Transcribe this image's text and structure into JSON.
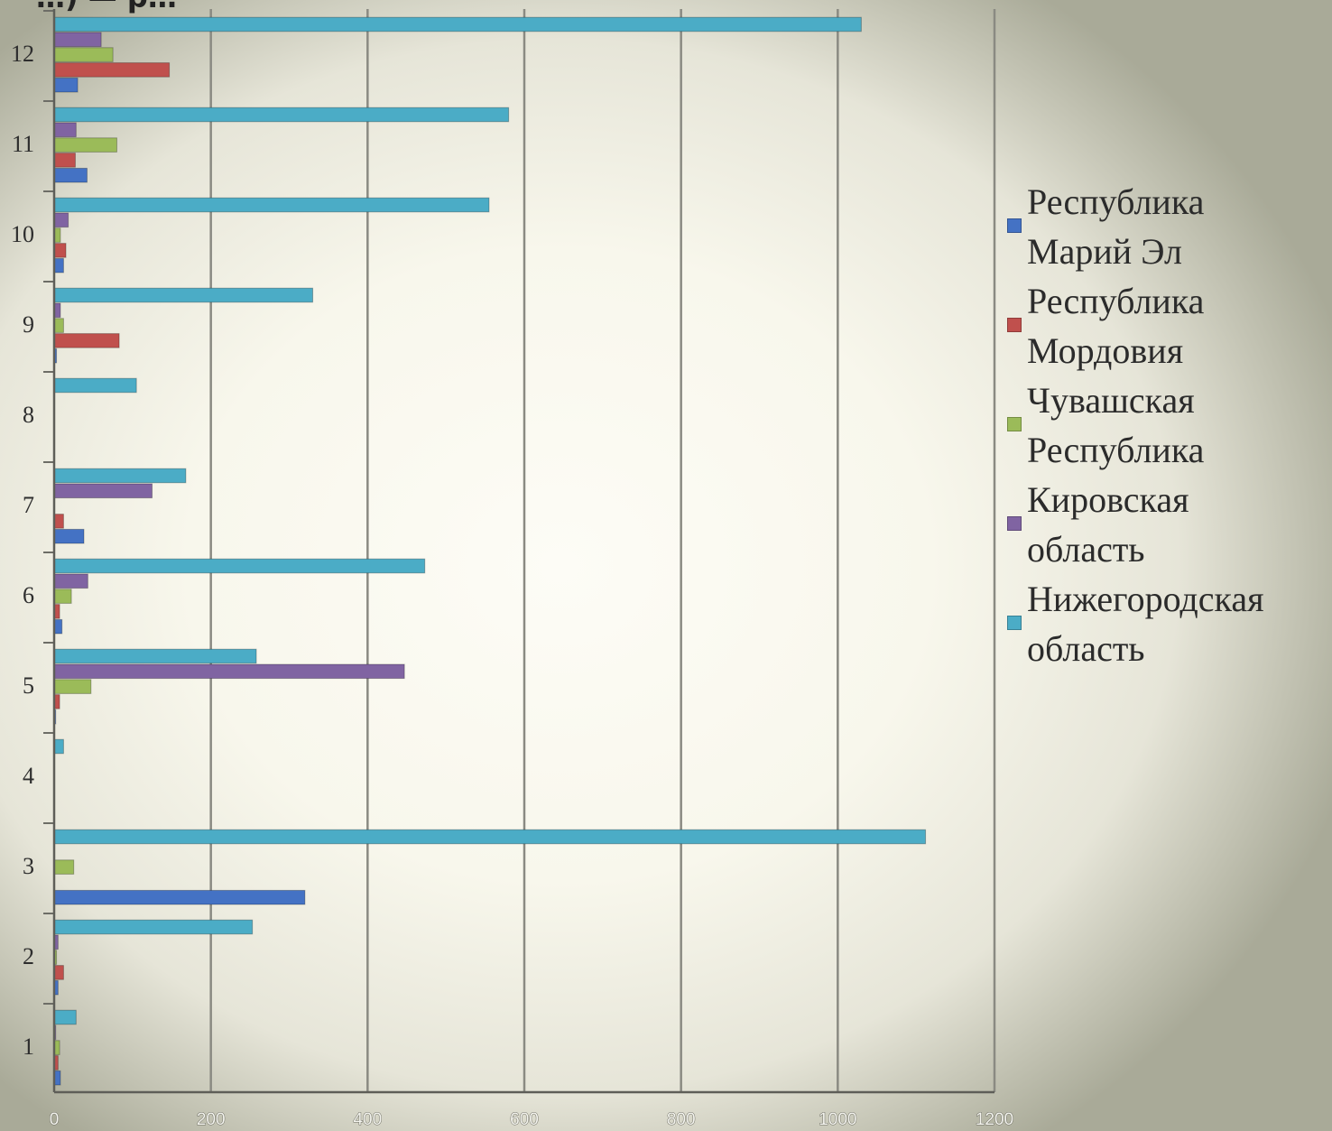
{
  "header": {
    "partial_text": "…) — р…"
  },
  "chart_data": {
    "type": "bar",
    "orientation": "horizontal",
    "title": "",
    "xlabel": "",
    "ylabel": "",
    "categories": [
      "1",
      "2",
      "3",
      "4",
      "5",
      "6",
      "7",
      "8",
      "9",
      "10",
      "11",
      "12"
    ],
    "xlim": [
      0,
      1200
    ],
    "xticks": [
      "0",
      "200",
      "400",
      "600",
      "800",
      "1000",
      "1200"
    ],
    "grid": true,
    "legend_position": "right",
    "series": [
      {
        "name": "Республика Марий Эл",
        "color": "#4472c4",
        "values": [
          8,
          5,
          320,
          0,
          2,
          10,
          38,
          0,
          3,
          12,
          42,
          30
        ]
      },
      {
        "name": "Республика Мордовия",
        "color": "#c0504d",
        "values": [
          5,
          12,
          0,
          0,
          7,
          7,
          12,
          0,
          83,
          15,
          27,
          147
        ]
      },
      {
        "name": "Чувашская Республика",
        "color": "#9bbb59",
        "values": [
          7,
          3,
          25,
          0,
          47,
          22,
          0,
          0,
          12,
          8,
          80,
          75
        ]
      },
      {
        "name": "Кировская область",
        "color": "#8064a2",
        "values": [
          2,
          5,
          0,
          0,
          447,
          43,
          125,
          0,
          8,
          18,
          28,
          60
        ]
      },
      {
        "name": "Нижегородская область",
        "color": "#4bacc6",
        "values": [
          28,
          253,
          1112,
          12,
          258,
          473,
          168,
          105,
          330,
          555,
          580,
          1030
        ]
      }
    ]
  },
  "legend": {
    "items": [
      {
        "label": "Республика\nМарий Эл",
        "color": "#4472c4"
      },
      {
        "label": "Республика\nМордовия",
        "color": "#c0504d"
      },
      {
        "label": "Чувашская\nРеспублика",
        "color": "#9bbb59"
      },
      {
        "label": "Кировская\nобласть",
        "color": "#8064a2"
      },
      {
        "label": "Нижегородская\nобласть",
        "color": "#4bacc6"
      }
    ]
  }
}
